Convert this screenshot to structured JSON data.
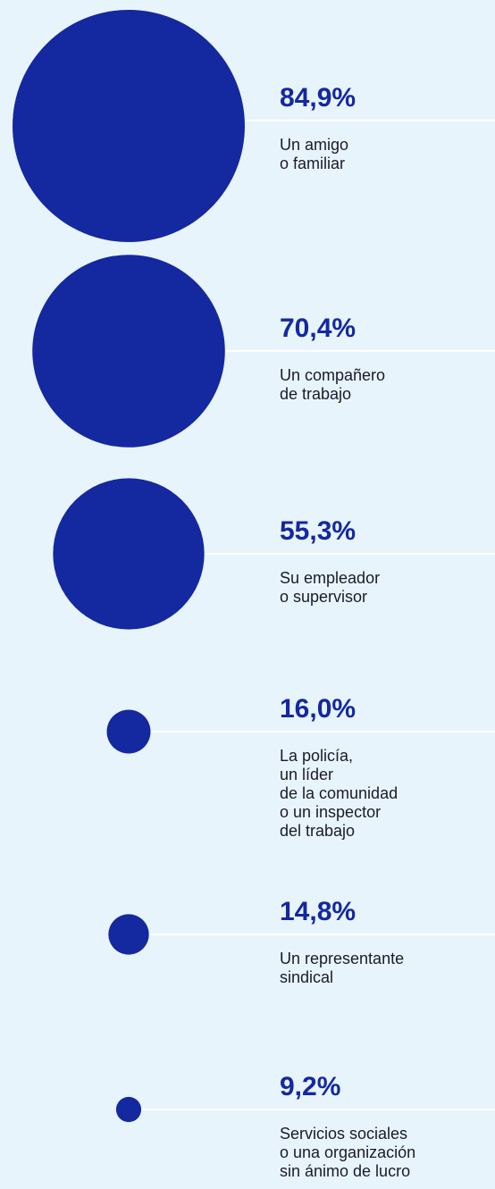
{
  "chart_data": {
    "type": "bubble",
    "color": "#1428a0",
    "values": [
      84.9,
      70.4,
      55.3,
      16.0,
      14.8,
      9.2
    ],
    "value_labels": [
      "84,9%",
      "70,4%",
      "55,3%",
      "16,0%",
      "14,8%",
      "9,2%"
    ],
    "categories": [
      [
        "Un amigo",
        "o familiar"
      ],
      [
        "Un compañero",
        "de trabajo"
      ],
      [
        "Su empleador",
        "o supervisor"
      ],
      [
        "La policía,",
        "un líder",
        "de la comunidad",
        "o un inspector",
        "del trabajo"
      ],
      [
        "Un representante",
        "sindical"
      ],
      [
        "Servicios sociales",
        "o una organización",
        "sin ánimo de lucro"
      ]
    ]
  }
}
